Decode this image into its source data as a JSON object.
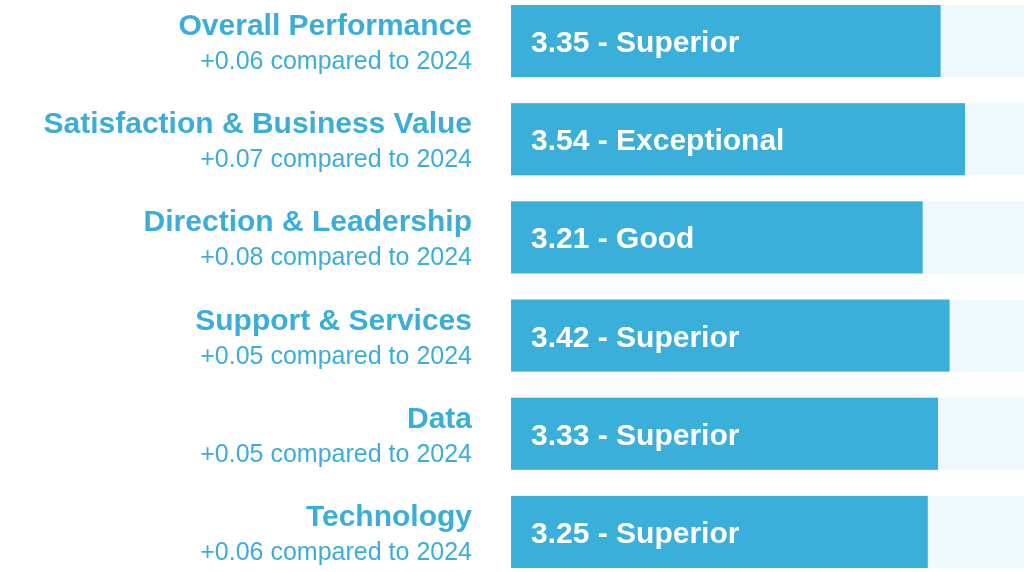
{
  "chart_data": {
    "type": "bar",
    "orientation": "horizontal",
    "categories": [
      "Overall Performance",
      "Satisfaction & Business Value",
      "Direction & Leadership",
      "Support & Services",
      "Data",
      "Technology"
    ],
    "values": [
      3.35,
      3.54,
      3.21,
      3.42,
      3.33,
      3.25
    ],
    "value_labels": [
      "3.35 - Superior",
      "3.54 - Exceptional",
      "3.21 - Good",
      "3.42 - Superior",
      "3.33 - Superior",
      "3.25 - Superior"
    ],
    "color": "#3aafd9",
    "xlim": [
      0,
      4
    ],
    "annotations": [
      "+0.06 compared to 2024",
      "+0.07 compared to 2024",
      "+0.08 compared to 2024",
      "+0.05 compared to 2024",
      "+0.05 compared to 2024",
      "+0.06 compared to 2024"
    ]
  }
}
